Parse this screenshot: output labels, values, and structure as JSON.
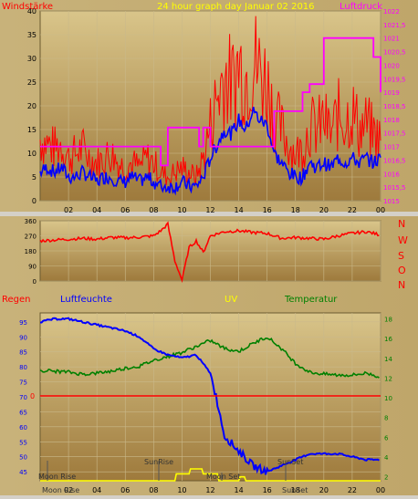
{
  "header": {
    "title": "24 hour graph day   Januar 02 2016",
    "left_label": "Windstärke",
    "right_label": "Luftdruck"
  },
  "direction_panel": {
    "compass_letters": [
      "N",
      "W",
      "S",
      "O",
      "N"
    ]
  },
  "lower_header": {
    "regen": "Regen",
    "luftfeuchte": "Luftfeuchte",
    "uv": "UV",
    "temperatur": "Temperatur"
  },
  "events": {
    "sunrise": "SunRise",
    "sunset": "SunSet",
    "moonrise": "Moon Rise",
    "moonset": "Moon Set"
  },
  "colors": {
    "wind_gust": "#ff0000",
    "wind_avg": "#0000ff",
    "pressure": "#ff00ff",
    "direction": "#ff0000",
    "humidity": "#0000ff",
    "temperature": "#008000",
    "uv": "#ffff00",
    "rain_line": "#ff0000",
    "title": "#ffff00",
    "wind_label": "#ff0000",
    "pressure_label": "#ff00ff"
  },
  "chart_data": [
    {
      "type": "line",
      "name": "wind",
      "x_ticks": [
        "02",
        "04",
        "06",
        "08",
        "10",
        "12",
        "14",
        "16",
        "18",
        "20",
        "22",
        "00"
      ],
      "ylim_left": [
        0,
        40
      ],
      "y_ticks_left": [
        "0",
        "5",
        "10",
        "15",
        "20",
        "25",
        "30",
        "35",
        "40"
      ],
      "ylim_right": [
        1015,
        1022
      ],
      "y_ticks_right": [
        "1015",
        "1015,5",
        "1016",
        "1016,5",
        "1017",
        "1017,5",
        "1018",
        "1018,5",
        "1019",
        "1019,5",
        "1020",
        "1020,5",
        "1021",
        "1021,5",
        "1022"
      ],
      "grid": true,
      "series": [
        {
          "key": "gust",
          "axis": "left",
          "x": [
            0,
            0.5,
            1,
            1.5,
            2,
            2.5,
            3,
            3.5,
            4,
            4.5,
            5,
            5.5,
            6,
            6.5,
            7,
            7.5,
            8,
            8.5,
            9,
            9.5,
            10,
            10.5,
            11,
            11.5,
            12,
            12.5,
            13,
            13.5,
            14,
            14.5,
            15,
            15.5,
            16,
            16.5,
            17,
            17.5,
            18,
            18.5,
            19,
            19.5,
            20,
            20.5,
            21,
            21.5,
            22,
            22.5,
            23,
            23.5,
            24
          ],
          "values": [
            13,
            12,
            11,
            12,
            9,
            10,
            11,
            9,
            8,
            9,
            10,
            8,
            7,
            8,
            7,
            9,
            8,
            6,
            5,
            6,
            7,
            6,
            5,
            9,
            16,
            22,
            27,
            24,
            29,
            26,
            30,
            27,
            25,
            18,
            15,
            12,
            10,
            11,
            16,
            15,
            17,
            14,
            18,
            17,
            19,
            15,
            16,
            14,
            13
          ]
        },
        {
          "key": "avg",
          "axis": "left",
          "x": [
            0,
            0.5,
            1,
            1.5,
            2,
            2.5,
            3,
            3.5,
            4,
            4.5,
            5,
            5.5,
            6,
            6.5,
            7,
            7.5,
            8,
            8.5,
            9,
            9.5,
            10,
            10.5,
            11,
            11.5,
            12,
            12.5,
            13,
            13.5,
            14,
            14.5,
            15,
            15.5,
            16,
            16.5,
            17,
            17.5,
            18,
            18.5,
            19,
            19.5,
            20,
            20.5,
            21,
            21.5,
            22,
            22.5,
            23,
            23.5,
            24
          ],
          "values": [
            6,
            7,
            6,
            7,
            5,
            5,
            6,
            5,
            4,
            5,
            5,
            4,
            4,
            5,
            4,
            5,
            4,
            3,
            3,
            3,
            4,
            3,
            3,
            5,
            9,
            12,
            15,
            14,
            17,
            15,
            19,
            17,
            16,
            10,
            8,
            6,
            5,
            5,
            8,
            7,
            8,
            7,
            9,
            8,
            9,
            8,
            9,
            8,
            9
          ]
        },
        {
          "key": "pressure",
          "axis": "right",
          "x": [
            0,
            1,
            3,
            5,
            6,
            7,
            8,
            8.5,
            9,
            10,
            11,
            11.2,
            11.5,
            12,
            13,
            14,
            15,
            16,
            16.5,
            18,
            18.5,
            19,
            20,
            21,
            22,
            23,
            23.5,
            24
          ],
          "values": [
            1017,
            1017,
            1017,
            1017,
            1017,
            1017,
            1017,
            1016.3,
            1017.7,
            1017.7,
            1017.7,
            1017,
            1017.7,
            1017,
            1017,
            1017,
            1017,
            1017,
            1018.3,
            1018.3,
            1019,
            1019.3,
            1021,
            1021,
            1021,
            1021,
            1020.3,
            1019
          ]
        }
      ]
    },
    {
      "type": "line",
      "name": "wind_direction",
      "ylim": [
        0,
        360
      ],
      "y_ticks": [
        "0",
        "90",
        "180",
        "270",
        "360"
      ],
      "grid": true,
      "x": [
        0,
        1,
        2,
        3,
        4,
        5,
        6,
        7,
        8,
        8.5,
        9,
        9.5,
        10,
        10.5,
        11,
        11.5,
        12,
        13,
        14,
        15,
        16,
        17,
        18,
        19,
        20,
        21,
        22,
        23,
        24
      ],
      "values": [
        240,
        245,
        250,
        255,
        250,
        260,
        258,
        262,
        270,
        300,
        340,
        120,
        5,
        200,
        240,
        170,
        270,
        295,
        300,
        290,
        285,
        255,
        260,
        255,
        250,
        270,
        285,
        295,
        275
      ]
    },
    {
      "type": "line",
      "name": "weather",
      "x_ticks": [
        "02",
        "04",
        "06",
        "08",
        "10",
        "12",
        "14",
        "16",
        "18",
        "20",
        "22",
        "00"
      ],
      "ylim_humidity": [
        42,
        98
      ],
      "y_ticks_humidity": [
        "45",
        "50",
        "55",
        "60",
        "65",
        "70",
        "75",
        "80",
        "85",
        "90",
        "95"
      ],
      "ylim_temperature": [
        1.6,
        18.6
      ],
      "y_ticks_temperature": [
        "2",
        "4",
        "6",
        "8",
        "10",
        "12",
        "14",
        "16",
        "18"
      ],
      "rain_axis_label": "0",
      "grid": true,
      "series": [
        {
          "key": "humidity",
          "axis": "humidity",
          "x": [
            0,
            1,
            2,
            3,
            4,
            5,
            6,
            7,
            8,
            9,
            10,
            11,
            12,
            12.5,
            13,
            14,
            15,
            16,
            17,
            18,
            19,
            20,
            21,
            22,
            23,
            24
          ],
          "values": [
            95,
            96,
            96,
            95,
            94,
            93,
            92,
            90,
            86,
            84,
            83,
            84,
            78,
            68,
            57,
            52,
            47,
            45,
            47,
            49,
            51,
            51,
            51,
            50,
            49,
            49
          ]
        },
        {
          "key": "temperature",
          "axis": "temperature",
          "x": [
            0,
            1,
            2,
            3,
            4,
            5,
            6,
            7,
            8,
            9,
            10,
            11,
            12,
            13,
            14,
            15,
            16,
            17,
            18,
            19,
            20,
            21,
            22,
            23,
            24
          ],
          "values": [
            12.8,
            12.7,
            12.6,
            12.4,
            12.5,
            12.7,
            13.0,
            13.2,
            13.8,
            14.2,
            14.6,
            15.2,
            15.8,
            15.0,
            14.7,
            15.5,
            16.2,
            15.0,
            13.5,
            12.6,
            12.4,
            12.3,
            12.3,
            12.5,
            12.1
          ]
        },
        {
          "key": "uv",
          "axis": "temperature",
          "x": [
            0,
            9.5,
            9.6,
            10.5,
            10.6,
            11.4,
            11.5,
            12.5,
            12.6,
            14.0,
            14.1,
            14.4,
            14.5,
            24
          ],
          "values": [
            1.6,
            1.6,
            2.3,
            2.3,
            2.8,
            2.8,
            2.3,
            2.3,
            1.6,
            1.6,
            2.0,
            2.0,
            1.6,
            1.6
          ]
        }
      ]
    }
  ]
}
